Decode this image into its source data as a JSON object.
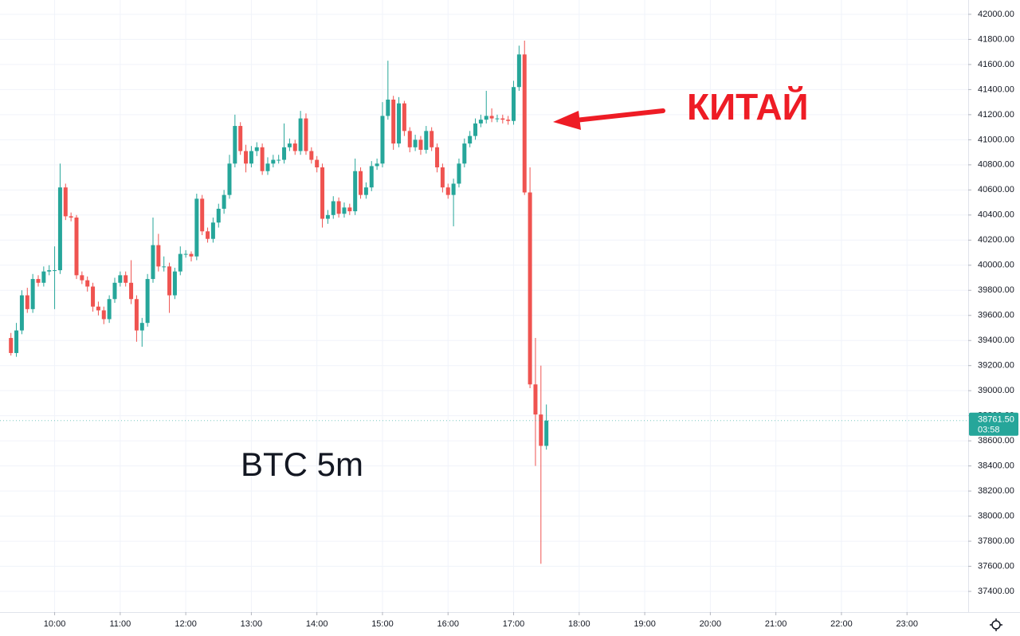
{
  "chart_data": {
    "type": "candlestick",
    "annotations": [
      "BTC 5m",
      "КИТАЙ"
    ],
    "up_color": "#26a69a",
    "down_color": "#ef5350",
    "grid": true,
    "x": [
      560,
      565,
      570,
      575,
      580,
      585,
      590,
      595,
      600,
      605,
      610,
      615,
      620,
      625,
      630,
      635,
      640,
      645,
      650,
      655,
      660,
      665,
      670,
      675,
      680,
      685,
      690,
      695,
      700,
      705,
      710,
      715,
      720,
      725,
      730,
      735,
      740,
      745,
      750,
      755,
      760,
      765,
      770,
      775,
      780,
      785,
      790,
      795,
      800,
      805,
      810,
      815,
      820,
      825,
      830,
      835,
      840,
      845,
      850,
      855,
      860,
      865,
      870,
      875,
      880,
      885,
      890,
      895,
      900,
      905,
      910,
      915,
      920,
      925,
      930,
      935,
      940,
      945,
      950,
      955,
      960,
      965,
      970,
      975,
      980,
      985,
      990,
      995,
      1000,
      1005,
      1010,
      1015,
      1020,
      1025,
      1030,
      1035,
      1040,
      1045,
      1050
    ],
    "open": [
      39420,
      39300,
      39480,
      39760,
      39650,
      39890,
      39860,
      39950,
      39960,
      39960,
      40620,
      40390,
      40380,
      39920,
      39880,
      39830,
      39670,
      39640,
      39570,
      39730,
      39860,
      39920,
      39860,
      39730,
      39480,
      39540,
      39890,
      40160,
      39990,
      39990,
      39760,
      39950,
      40090,
      40090,
      40070,
      40530,
      40270,
      40210,
      40340,
      40450,
      40560,
      40810,
      41110,
      40910,
      40810,
      40910,
      40940,
      40750,
      40810,
      40840,
      40840,
      40940,
      40970,
      40910,
      41170,
      40910,
      40840,
      40780,
      40370,
      40400,
      40510,
      40410,
      40460,
      40430,
      40750,
      40560,
      40620,
      40790,
      40810,
      41190,
      41320,
      40970,
      41290,
      41070,
      40940,
      41000,
      40920,
      41070,
      40940,
      40780,
      40620,
      40560,
      40650,
      40810,
      40970,
      41030,
      41130,
      41160,
      41190,
      41170,
      41170,
      41160,
      41150,
      41420,
      41680,
      40580,
      39050,
      38810,
      38560
    ],
    "high": [
      39460,
      39540,
      39800,
      39820,
      39930,
      39920,
      39990,
      40000,
      40150,
      40810,
      40650,
      40420,
      40400,
      39950,
      39910,
      39860,
      39710,
      39670,
      39760,
      39900,
      39950,
      39950,
      40040,
      39760,
      39580,
      39930,
      40380,
      40250,
      40070,
      40020,
      39980,
      40150,
      40120,
      40110,
      40570,
      40560,
      40300,
      40380,
      40490,
      40600,
      40880,
      41200,
      41140,
      40960,
      40950,
      40980,
      40970,
      40860,
      40880,
      40880,
      41130,
      41010,
      41000,
      41230,
      41210,
      40940,
      40870,
      40810,
      40440,
      40550,
      40540,
      40500,
      40490,
      40850,
      40780,
      40660,
      40830,
      40850,
      41300,
      41630,
      41350,
      41340,
      41310,
      41100,
      41040,
      41030,
      41110,
      41100,
      40970,
      40810,
      40650,
      40690,
      40850,
      41010,
      41070,
      41170,
      41200,
      41390,
      41250,
      41200,
      41200,
      41190,
      41470,
      41750,
      41790,
      40780,
      39420,
      39200,
      38890
    ],
    "low": [
      39280,
      39270,
      39450,
      39620,
      39620,
      39830,
      39830,
      39920,
      39650,
      39930,
      40360,
      40350,
      39890,
      39850,
      39790,
      39630,
      39600,
      39530,
      39540,
      39700,
      39830,
      39830,
      39690,
      39390,
      39350,
      39510,
      39860,
      39950,
      39950,
      39620,
      39730,
      39920,
      40060,
      40030,
      40040,
      40240,
      40180,
      40180,
      40300,
      40410,
      40530,
      40780,
      40880,
      40740,
      40780,
      40870,
      40720,
      40720,
      40780,
      40810,
      40810,
      40910,
      40880,
      40880,
      40880,
      40810,
      40740,
      40300,
      40330,
      40370,
      40380,
      40380,
      40400,
      40400,
      40530,
      40530,
      40590,
      40760,
      40780,
      41160,
      40920,
      40940,
      41030,
      40900,
      40910,
      40880,
      40890,
      40910,
      40740,
      40580,
      40530,
      40310,
      40620,
      40780,
      40940,
      41000,
      41100,
      41130,
      41140,
      41140,
      41130,
      41120,
      41120,
      41390,
      40560,
      39020,
      38400,
      37620,
      38530
    ],
    "close": [
      39300,
      39480,
      39760,
      39650,
      39890,
      39860,
      39950,
      39960,
      39960,
      40620,
      40390,
      40380,
      39920,
      39880,
      39830,
      39670,
      39640,
      39570,
      39730,
      39860,
      39920,
      39860,
      39730,
      39480,
      39540,
      39890,
      40160,
      39990,
      39990,
      39760,
      39950,
      40090,
      40090,
      40070,
      40530,
      40270,
      40210,
      40340,
      40450,
      40560,
      40810,
      41110,
      40910,
      40810,
      40910,
      40940,
      40750,
      40810,
      40840,
      40840,
      40940,
      40970,
      40910,
      41170,
      40910,
      40840,
      40780,
      40370,
      40400,
      40510,
      40410,
      40460,
      40430,
      40750,
      40560,
      40620,
      40790,
      40810,
      41190,
      41320,
      40970,
      41290,
      41070,
      40940,
      41000,
      40920,
      41070,
      40940,
      40780,
      40620,
      40560,
      40650,
      40810,
      40970,
      41030,
      41130,
      41160,
      41190,
      41170,
      41170,
      41160,
      41150,
      41420,
      41680,
      40580,
      39050,
      38810,
      38560,
      38761.5
    ],
    "last_price": {
      "value": 38761.5,
      "label": "38761.50"
    },
    "countdown": "03:58",
    "xlim": [
      550,
      1436
    ],
    "xticks": [
      {
        "value": 600,
        "label": "10:00"
      },
      {
        "value": 660,
        "label": "11:00"
      },
      {
        "value": 720,
        "label": "12:00"
      },
      {
        "value": 780,
        "label": "13:00"
      },
      {
        "value": 840,
        "label": "14:00"
      },
      {
        "value": 900,
        "label": "15:00"
      },
      {
        "value": 960,
        "label": "16:00"
      },
      {
        "value": 1020,
        "label": "17:00"
      },
      {
        "value": 1080,
        "label": "18:00"
      },
      {
        "value": 1140,
        "label": "19:00"
      },
      {
        "value": 1200,
        "label": "20:00"
      },
      {
        "value": 1260,
        "label": "21:00"
      },
      {
        "value": 1320,
        "label": "22:00"
      },
      {
        "value": 1380,
        "label": "23:00"
      }
    ],
    "ylim": [
      37235,
      42114
    ],
    "yticks": [
      {
        "value": 37400,
        "label": "37400.00"
      },
      {
        "value": 37600,
        "label": "37600.00"
      },
      {
        "value": 37800,
        "label": "37800.00"
      },
      {
        "value": 38000,
        "label": "38000.00"
      },
      {
        "value": 38200,
        "label": "38200.00"
      },
      {
        "value": 38400,
        "label": "38400.00"
      },
      {
        "value": 38600,
        "label": "38600.00"
      },
      {
        "value": 38800,
        "label": "38800.00"
      },
      {
        "value": 39000,
        "label": "39000.00"
      },
      {
        "value": 39200,
        "label": "39200.00"
      },
      {
        "value": 39400,
        "label": "39400.00"
      },
      {
        "value": 39600,
        "label": "39600.00"
      },
      {
        "value": 39800,
        "label": "39800.00"
      },
      {
        "value": 40000,
        "label": "40000.00"
      },
      {
        "value": 40200,
        "label": "40200.00"
      },
      {
        "value": 40400,
        "label": "40400.00"
      },
      {
        "value": 40600,
        "label": "40600.00"
      },
      {
        "value": 40800,
        "label": "40800.00"
      },
      {
        "value": 41000,
        "label": "41000.00"
      },
      {
        "value": 41200,
        "label": "41200.00"
      },
      {
        "value": 41400,
        "label": "41400.00"
      },
      {
        "value": 41600,
        "label": "41600.00"
      },
      {
        "value": 41800,
        "label": "41800.00"
      },
      {
        "value": 42000,
        "label": "42000.00"
      }
    ]
  }
}
